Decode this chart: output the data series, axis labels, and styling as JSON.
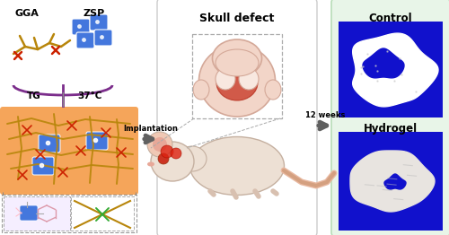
{
  "fig_width": 5.0,
  "fig_height": 2.62,
  "dpi": 100,
  "bg_color": "#ffffff",
  "gga_label": "GGA",
  "zsp_label": "ZSP",
  "tg_label": "TG",
  "temp_label": "37°C",
  "implantation_label": "Implantation",
  "skull_defect_label": "Skull defect",
  "weeks_label": "12 weeks",
  "control_label": "Control",
  "hydrogel_label": "Hydrogel",
  "arrow_color": "#606060",
  "purple_color": "#7B2D8B",
  "orange_bg": "#F5A55A",
  "dark_yellow": "#B8860B",
  "red_cross": "#CC2200",
  "blue_zsp": "#4477DD",
  "blue_panel": "#1111CC",
  "skull_pink": "#f2d5c8",
  "skull_red": "#cc4433",
  "mouse_body": "#ede0d4",
  "mouse_pink": "#e8b8a0",
  "label_fontsize": 7,
  "title_fontsize": 8,
  "small_fontsize": 6,
  "arrow_label_fontsize": 6
}
